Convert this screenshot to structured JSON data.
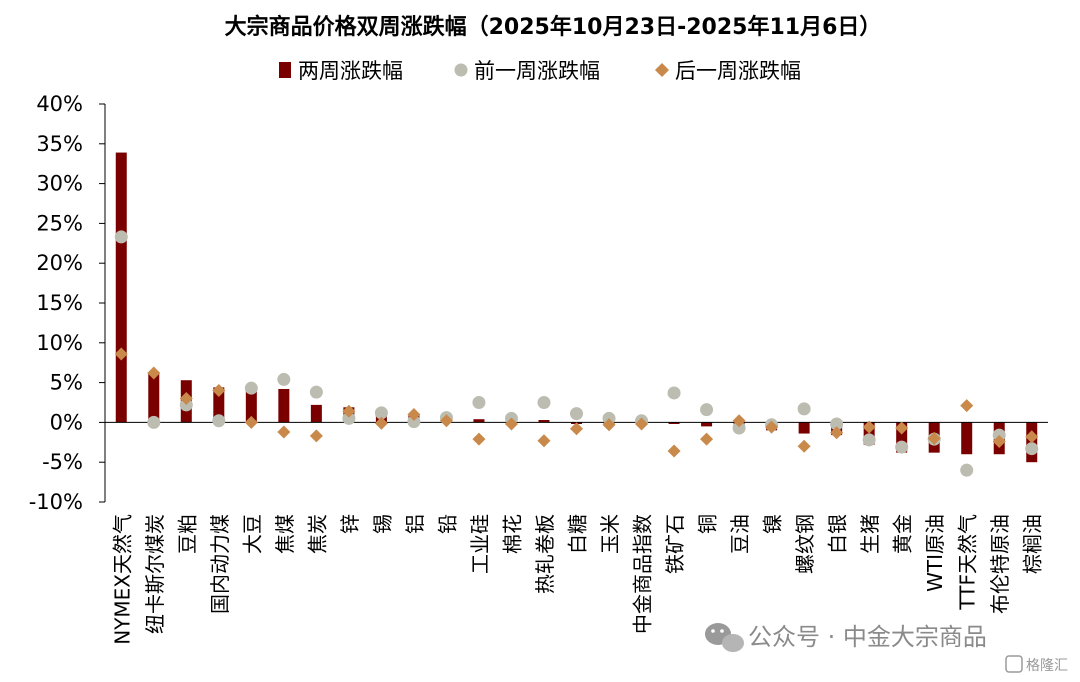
{
  "chart_data": {
    "type": "bar",
    "title": "大宗商品价格双周涨跌幅（2025年10月23日-2025年11月6日）",
    "ylim": [
      -10,
      40
    ],
    "yticks": [
      "40%",
      "35%",
      "30%",
      "25%",
      "20%",
      "15%",
      "10%",
      "5%",
      "0%",
      "-5%",
      "-10%"
    ],
    "ytick_values": [
      40,
      35,
      30,
      25,
      20,
      15,
      10,
      5,
      0,
      -5,
      -10
    ],
    "legend_position": "top-center",
    "grid": false,
    "categories": [
      "NYMEX天然气",
      "纽卡斯尔煤炭",
      "豆粕",
      "国内动力煤",
      "大豆",
      "焦煤",
      "焦炭",
      "锌",
      "锡",
      "铝",
      "铅",
      "工业硅",
      "棉花",
      "热轧卷板",
      "白糖",
      "玉米",
      "中金商品指数",
      "铁矿石",
      "铜",
      "豆油",
      "镍",
      "螺纹钢",
      "白银",
      "生猪",
      "黄金",
      "WTI原油",
      "TTF天然气",
      "布伦特原油",
      "棕榈油"
    ],
    "series": [
      {
        "name": "两周涨跌幅",
        "type": "bar",
        "color": "#7a0000",
        "values": [
          33.9,
          6.3,
          5.3,
          4.4,
          4.3,
          4.2,
          2.2,
          1.9,
          1.2,
          1.1,
          0.6,
          0.4,
          0.2,
          0.3,
          -0.2,
          -0.2,
          -0.3,
          -0.2,
          -0.5,
          -0.6,
          -1.0,
          -1.4,
          -1.6,
          -2.8,
          -3.8,
          -3.8,
          -4.0,
          -4.0,
          -5.0
        ]
      },
      {
        "name": "前一周涨跌幅",
        "type": "scatter",
        "marker": "circle",
        "color": "#bcbcb0",
        "values": [
          23.3,
          0.0,
          2.2,
          0.2,
          4.3,
          5.4,
          3.8,
          0.5,
          1.2,
          0.1,
          0.6,
          2.5,
          0.5,
          2.5,
          1.1,
          0.5,
          0.2,
          3.7,
          1.6,
          -0.7,
          -0.3,
          1.7,
          -0.2,
          -2.2,
          -3.1,
          -2.1,
          -6.0,
          -1.6,
          -3.3
        ]
      },
      {
        "name": "后一周涨跌幅",
        "type": "scatter",
        "marker": "diamond",
        "color": "#c8894a",
        "values": [
          8.6,
          6.2,
          3.0,
          4.0,
          0.0,
          -1.2,
          -1.7,
          1.4,
          -0.1,
          1.0,
          0.2,
          -2.1,
          -0.2,
          -2.3,
          -0.8,
          -0.3,
          -0.2,
          -3.6,
          -2.1,
          0.2,
          -0.6,
          -3.0,
          -1.3,
          -0.6,
          -0.7,
          -2.0,
          2.1,
          -2.4,
          -1.8
        ]
      }
    ]
  },
  "watermark": {
    "text": "公众号 · 中金大宗商品",
    "corner_text": "格隆汇",
    "icon": "wechat-icon"
  }
}
